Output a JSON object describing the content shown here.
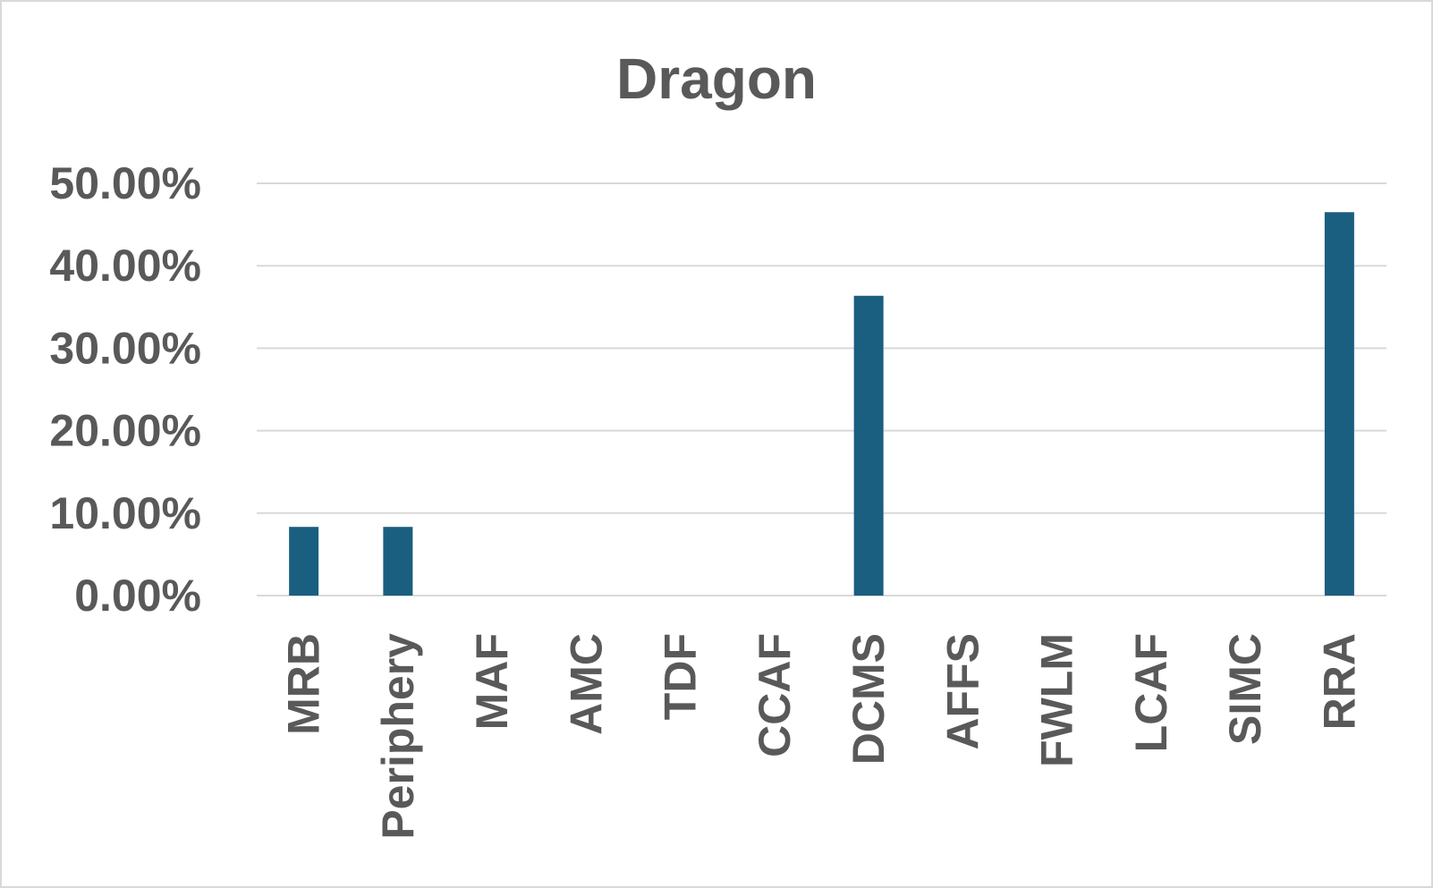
{
  "chart_data": {
    "type": "bar",
    "title": "Dragon",
    "xlabel": "",
    "ylabel": "",
    "categories": [
      "MRB",
      "Periphery",
      "MAF",
      "AMC",
      "TDF",
      "CCAF",
      "DCMS",
      "AFFS",
      "FWLM",
      "LCAF",
      "SIMC",
      "RRA"
    ],
    "values": [
      8.33,
      8.33,
      0,
      0,
      0,
      0,
      36.36,
      0,
      0,
      0,
      0,
      46.5
    ],
    "ylim": [
      0,
      50
    ],
    "yticks": [
      "0.00%",
      "10.00%",
      "20.00%",
      "30.00%",
      "40.00%",
      "50.00%"
    ],
    "grid": true,
    "legend": "none",
    "bar_color": "#1a5e80"
  }
}
